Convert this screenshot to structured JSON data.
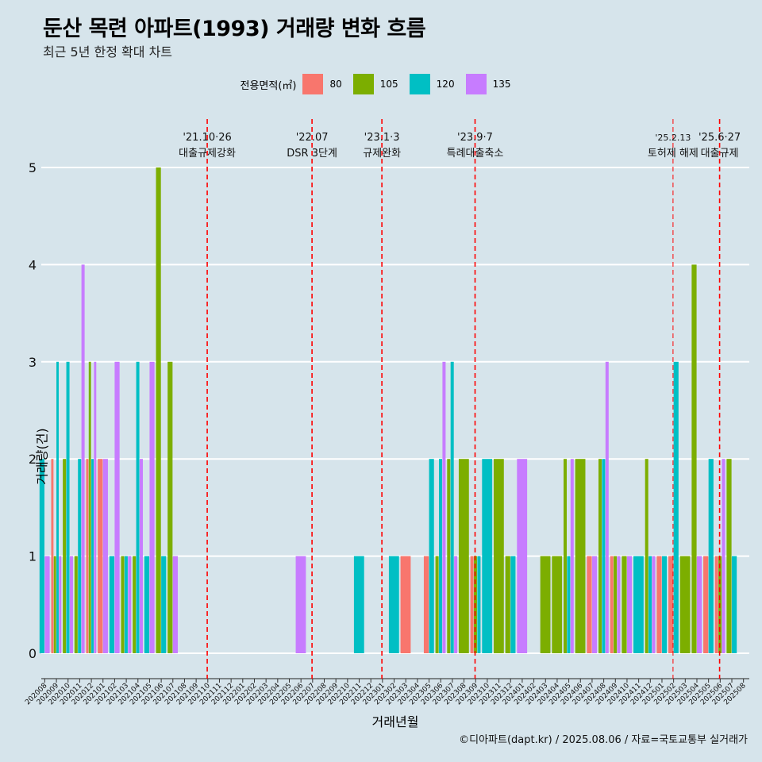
{
  "chart_data": {
    "type": "bar",
    "title": "둔산 목련 아파트(1993) 거래량 변화 흐름",
    "subtitle": "최근 5년 한정 확대 차트",
    "xlabel": "거래년월",
    "ylabel": "거래량(건)",
    "caption": "©디아파트(dapt.kr) / 2025.08.06 / 자료=국토교통부 실거래가",
    "legend_title": "전용면적(㎡)",
    "legend_position": "top",
    "ylim": [
      0,
      5
    ],
    "y_ticks": [
      "0",
      "1",
      "2",
      "3",
      "4",
      "5"
    ],
    "grid": true,
    "series": [
      {
        "name": "80",
        "color": "#f8766d"
      },
      {
        "name": "105",
        "color": "#7cae00"
      },
      {
        "name": "120",
        "color": "#00bfc4"
      },
      {
        "name": "135",
        "color": "#c77cff"
      }
    ],
    "months": [
      "202008",
      "202009",
      "202010",
      "202011",
      "202012",
      "202101",
      "202102",
      "202103",
      "202104",
      "202105",
      "202106",
      "202107",
      "202108",
      "202109",
      "202110",
      "202111",
      "202112",
      "202201",
      "202202",
      "202203",
      "202204",
      "202205",
      "202206",
      "202207",
      "202208",
      "202209",
      "202210",
      "202211",
      "202212",
      "202301",
      "202302",
      "202303",
      "202304",
      "202305",
      "202306",
      "202307",
      "202308",
      "202309",
      "202310",
      "202311",
      "202312",
      "202401",
      "202402",
      "202403",
      "202404",
      "202405",
      "202406",
      "202407",
      "202408",
      "202409",
      "202410",
      "202411",
      "202412",
      "202501",
      "202502",
      "202503",
      "202504",
      "202505",
      "202506",
      "202507",
      "202508"
    ],
    "data": [
      {
        "month": "202008",
        "values": {
          "120": 2,
          "135": 1
        }
      },
      {
        "month": "202009",
        "values": {
          "80": 2,
          "105": 1,
          "120": 3,
          "135": 1
        }
      },
      {
        "month": "202010",
        "values": {
          "105": 2,
          "120": 3,
          "135": 1
        }
      },
      {
        "month": "202011",
        "values": {
          "105": 1,
          "120": 2,
          "135": 4
        }
      },
      {
        "month": "202012",
        "values": {
          "80": 2,
          "105": 3,
          "120": 2,
          "135": 3
        }
      },
      {
        "month": "202101",
        "values": {
          "80": 2,
          "135": 2
        }
      },
      {
        "month": "202102",
        "values": {
          "120": 1,
          "135": 3
        }
      },
      {
        "month": "202103",
        "values": {
          "105": 1,
          "120": 1,
          "135": 1
        }
      },
      {
        "month": "202104",
        "values": {
          "105": 1,
          "120": 3,
          "135": 2
        }
      },
      {
        "month": "202105",
        "values": {
          "120": 1,
          "135": 3
        }
      },
      {
        "month": "202106",
        "values": {
          "105": 5,
          "120": 1
        }
      },
      {
        "month": "202107",
        "values": {
          "105": 3,
          "135": 1
        }
      },
      {
        "month": "202206",
        "values": {
          "135": 1
        }
      },
      {
        "month": "202211",
        "values": {
          "120": 1
        }
      },
      {
        "month": "202302",
        "values": {
          "120": 1
        }
      },
      {
        "month": "202303",
        "values": {
          "80": 1
        }
      },
      {
        "month": "202305",
        "values": {
          "80": 1,
          "120": 2
        }
      },
      {
        "month": "202306",
        "values": {
          "105": 1,
          "120": 2,
          "135": 3
        }
      },
      {
        "month": "202307",
        "values": {
          "105": 2,
          "120": 3,
          "135": 1
        }
      },
      {
        "month": "202308",
        "values": {
          "105": 2
        }
      },
      {
        "month": "202309",
        "values": {
          "80": 1,
          "105": 1,
          "120": 1
        }
      },
      {
        "month": "202310",
        "values": {
          "120": 2
        }
      },
      {
        "month": "202311",
        "values": {
          "105": 2
        }
      },
      {
        "month": "202312",
        "values": {
          "105": 1,
          "120": 1
        }
      },
      {
        "month": "202401",
        "values": {
          "135": 2
        }
      },
      {
        "month": "202403",
        "values": {
          "105": 1
        }
      },
      {
        "month": "202404",
        "values": {
          "105": 1
        }
      },
      {
        "month": "202405",
        "values": {
          "105": 2,
          "120": 1,
          "135": 2
        }
      },
      {
        "month": "202406",
        "values": {
          "105": 2
        }
      },
      {
        "month": "202407",
        "values": {
          "80": 1,
          "135": 1
        }
      },
      {
        "month": "202408",
        "values": {
          "105": 2,
          "120": 2,
          "135": 3
        }
      },
      {
        "month": "202409",
        "values": {
          "80": 1,
          "105": 1,
          "135": 1
        }
      },
      {
        "month": "202410",
        "values": {
          "105": 1,
          "135": 1
        }
      },
      {
        "month": "202411",
        "values": {
          "120": 1
        }
      },
      {
        "month": "202412",
        "values": {
          "105": 2,
          "120": 1,
          "135": 1
        }
      },
      {
        "month": "202501",
        "values": {
          "80": 1,
          "120": 1
        }
      },
      {
        "month": "202502",
        "values": {
          "80": 1,
          "120": 3
        }
      },
      {
        "month": "202503",
        "values": {
          "105": 1
        }
      },
      {
        "month": "202504",
        "values": {
          "105": 4,
          "135": 1
        }
      },
      {
        "month": "202505",
        "values": {
          "80": 1,
          "120": 2
        }
      },
      {
        "month": "202506",
        "values": {
          "80": 1,
          "105": 1,
          "135": 2
        }
      },
      {
        "month": "202507",
        "values": {
          "105": 2,
          "120": 1
        }
      }
    ],
    "events": [
      {
        "month": "202110",
        "date": "'21.10·26",
        "label": "대출규제강화"
      },
      {
        "month": "202207",
        "date": "'22.07",
        "label": "DSR 3단계"
      },
      {
        "month": "202301",
        "date": "'23.1·3",
        "label": "규제완화"
      },
      {
        "month": "202309",
        "date": "'23.9·7",
        "label": "특례대출축소"
      },
      {
        "month": "202502",
        "date": "'25.2.13",
        "label": "토허제 해제"
      },
      {
        "month": "202506",
        "date": "'25.6·27",
        "label": "대출규제"
      }
    ]
  }
}
